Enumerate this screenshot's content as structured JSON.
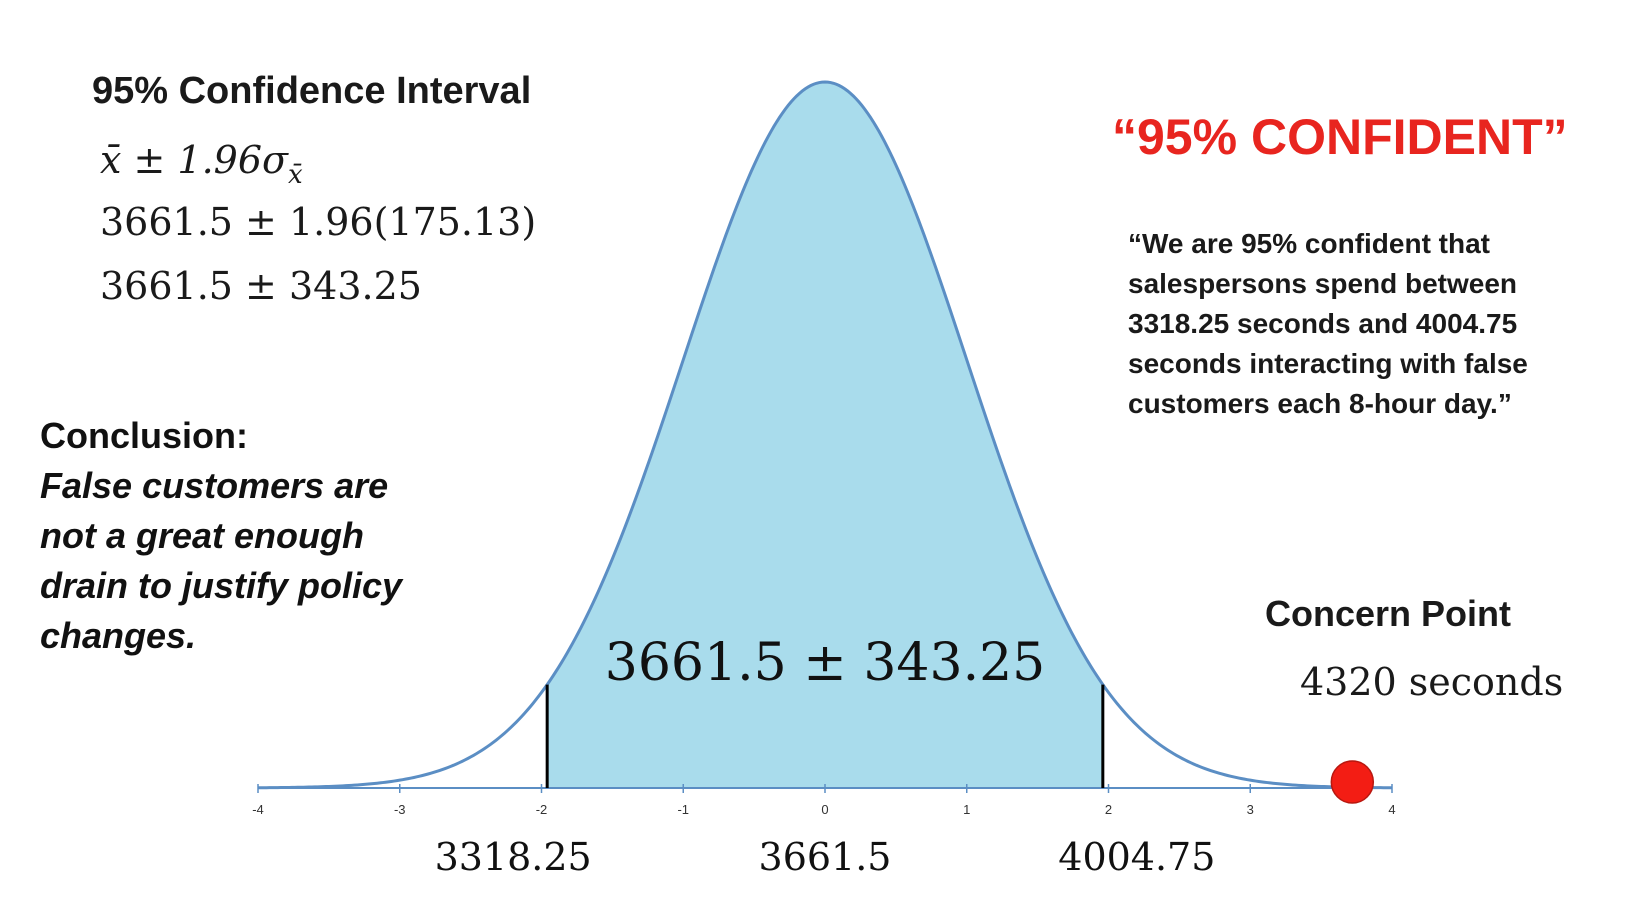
{
  "left_panel": {
    "title": "95% Confidence Interval",
    "formula_general_main": "x̄ ± 1.96σ",
    "formula_general_sub": "x̄",
    "formula_line2": "3661.5 ± 1.96(175.13)",
    "formula_line3": "3661.5 ± 343.25",
    "conclusion_heading": "Conclusion:",
    "conclusion_lines": [
      "False customers are",
      "not a great enough",
      "drain to justify policy",
      "changes."
    ]
  },
  "right_panel": {
    "confident_title": "“95% CONFIDENT”",
    "quote_lines": [
      "“We are 95% confident that",
      "salespersons spend between",
      "3318.25 seconds and 4004.75",
      "seconds interacting with false",
      "customers each 8-hour day.”"
    ],
    "concern_title": "Concern Point",
    "concern_value": "4320 seconds"
  },
  "colors": {
    "curve_stroke": "#5b8ec4",
    "shaded_fill": "#a9dcec",
    "axis": "#5b8ec4",
    "boundary_lines": "#000000",
    "concern_point": "#f31d14",
    "accent_red": "#e8251f"
  },
  "chart_data": {
    "type": "area",
    "distribution": "standard normal",
    "xlim": [
      -4,
      4
    ],
    "ylim": [
      0,
      0.4
    ],
    "x_ticks": [
      "-4",
      "-3",
      "-2",
      "-1",
      "0",
      "1",
      "2",
      "3",
      "4"
    ],
    "shaded_interval": [
      -1.96,
      1.96
    ],
    "boundary_lines_at": [
      -1.96,
      1.96
    ],
    "value_labels": [
      {
        "x": -2.2,
        "text": "3318.25"
      },
      {
        "x": 0,
        "text": "3661.5"
      },
      {
        "x": 2.2,
        "text": "4004.75"
      }
    ],
    "center_annotation": "3661.5 ± 343.25",
    "concern_point_x": 3.72,
    "grid": false
  }
}
